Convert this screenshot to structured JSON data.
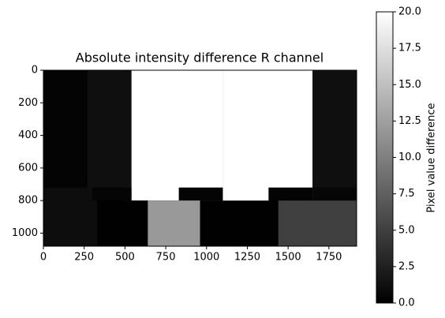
{
  "chart_data": {
    "type": "image",
    "title": "Absolute intensity difference R channel",
    "xlim": [
      0,
      1920
    ],
    "ylim": [
      1080,
      0
    ],
    "xticks": [
      0,
      250,
      500,
      750,
      1000,
      1250,
      1500,
      1750
    ],
    "yticks": [
      0,
      200,
      400,
      600,
      800,
      1000
    ],
    "colormap": "gray",
    "regions": [
      {
        "x": [
          0,
          270
        ],
        "y": [
          0,
          720
        ],
        "value": 0.3
      },
      {
        "x": [
          270,
          540
        ],
        "y": [
          0,
          720
        ],
        "value": 1.2
      },
      {
        "x": [
          540,
          1100
        ],
        "y": [
          0,
          800
        ],
        "value": 20
      },
      {
        "x": [
          1100,
          1650
        ],
        "y": [
          0,
          810
        ],
        "value": 20
      },
      {
        "x": [
          1650,
          1920
        ],
        "y": [
          0,
          720
        ],
        "value": 1.2
      },
      {
        "x": [
          0,
          300
        ],
        "y": [
          720,
          800
        ],
        "value": 1
      },
      {
        "x": [
          300,
          540
        ],
        "y": [
          720,
          800
        ],
        "value": 0.4
      },
      {
        "x": [
          830,
          1100
        ],
        "y": [
          720,
          800
        ],
        "value": 0.3
      },
      {
        "x": [
          1380,
          1650
        ],
        "y": [
          720,
          810
        ],
        "value": 0.3
      },
      {
        "x": [
          1650,
          1920
        ],
        "y": [
          720,
          800
        ],
        "value": 0.5
      },
      {
        "x": [
          0,
          330
        ],
        "y": [
          800,
          1080
        ],
        "value": 1
      },
      {
        "x": [
          330,
          640
        ],
        "y": [
          800,
          1080
        ],
        "value": 0.1
      },
      {
        "x": [
          640,
          960
        ],
        "y": [
          800,
          1080
        ],
        "value": 12
      },
      {
        "x": [
          960,
          1440
        ],
        "y": [
          800,
          1080
        ],
        "value": 0.1
      },
      {
        "x": [
          1440,
          1920
        ],
        "y": [
          800,
          1080
        ],
        "value": 5
      }
    ],
    "colorbar": {
      "label": "Pixel value difference",
      "lim": [
        0,
        20
      ],
      "ticks": [
        {
          "value": 0,
          "label": "0.0"
        },
        2.5,
        {
          "value": 5,
          "label": "5.0"
        },
        7.5,
        {
          "value": 10,
          "label": "10.0"
        },
        12.5,
        {
          "value": 15,
          "label": "15.0"
        },
        17.5,
        {
          "value": 20,
          "label": "20.0"
        }
      ]
    }
  }
}
